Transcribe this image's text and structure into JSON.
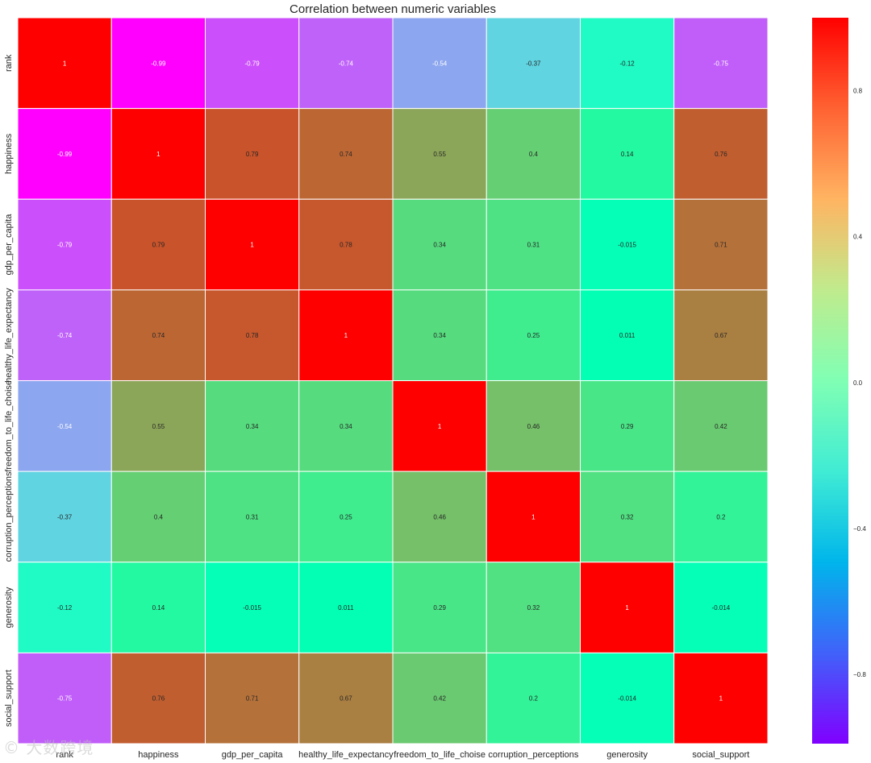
{
  "chart_data": {
    "type": "heatmap",
    "title": "Correlation between numeric variables",
    "xlabel": "",
    "ylabel": "",
    "rows": [
      "rank",
      "happiness",
      "gdp_per_capita",
      "healthy_life_expectancy",
      "freedom_to_life_choise",
      "corruption_perceptions",
      "generosity",
      "social_support"
    ],
    "columns": [
      "rank",
      "happiness",
      "gdp_per_capita",
      "healthy_life_expectancy",
      "freedom_to_life_choise",
      "corruption_perceptions",
      "generosity",
      "social_support"
    ],
    "values": [
      [
        1,
        -0.99,
        -0.79,
        -0.74,
        -0.54,
        -0.37,
        -0.12,
        -0.75
      ],
      [
        -0.99,
        1,
        0.79,
        0.74,
        0.55,
        0.4,
        0.14,
        0.76
      ],
      [
        -0.79,
        0.79,
        1,
        0.78,
        0.34,
        0.31,
        -0.015,
        0.71
      ],
      [
        -0.74,
        0.74,
        0.78,
        1,
        0.34,
        0.25,
        0.011,
        0.67
      ],
      [
        -0.54,
        0.55,
        0.34,
        0.34,
        1,
        0.46,
        0.29,
        0.42
      ],
      [
        -0.37,
        0.4,
        0.31,
        0.25,
        0.46,
        1,
        0.32,
        0.2
      ],
      [
        -0.12,
        0.14,
        -0.015,
        0.011,
        0.29,
        0.32,
        1,
        -0.014
      ],
      [
        -0.75,
        0.76,
        0.71,
        0.67,
        0.42,
        0.2,
        -0.014,
        1
      ]
    ],
    "colormap": "rainbow",
    "vmin": -0.99,
    "vmax": 1,
    "colorbar_ticks": [
      "0.8",
      "0.4",
      "0.0",
      "−0.4",
      "−0.8"
    ],
    "colorbar_tick_values": [
      0.8,
      0.4,
      0.0,
      -0.4,
      -0.8
    ],
    "annotations": true,
    "legend": "colorbar-right"
  },
  "watermark": "© 大数跨境"
}
